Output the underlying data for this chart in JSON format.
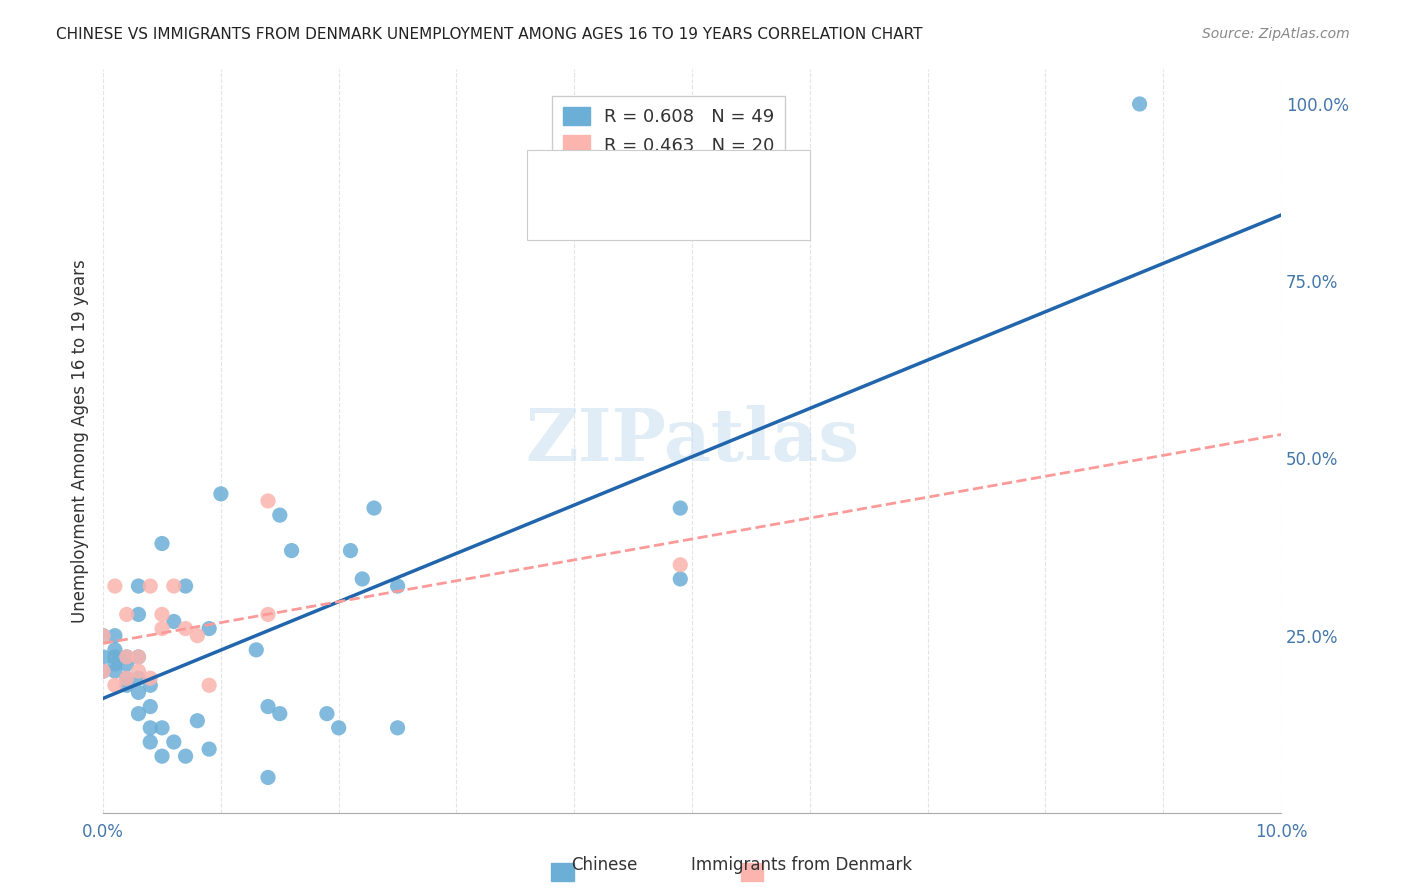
{
  "title": "CHINESE VS IMMIGRANTS FROM DENMARK UNEMPLOYMENT AMONG AGES 16 TO 19 YEARS CORRELATION CHART",
  "source": "Source: ZipAtlas.com",
  "xlabel": "",
  "ylabel": "Unemployment Among Ages 16 to 19 years",
  "xlim": [
    0.0,
    0.1
  ],
  "ylim": [
    0.0,
    1.05
  ],
  "xticks": [
    0.0,
    0.01,
    0.02,
    0.03,
    0.04,
    0.05,
    0.06,
    0.07,
    0.08,
    0.09,
    0.1
  ],
  "xticklabels": [
    "0.0%",
    "",
    "",
    "",
    "",
    "",
    "",
    "",
    "",
    "",
    "10.0%"
  ],
  "ytick_positions": [
    0.0,
    0.25,
    0.5,
    0.75,
    1.0
  ],
  "ytick_labels": [
    "",
    "25.0%",
    "50.0%",
    "75.0%",
    "100.0%"
  ],
  "r_chinese": 0.608,
  "n_chinese": 49,
  "r_denmark": 0.463,
  "n_denmark": 20,
  "chinese_color": "#6baed6",
  "denmark_color": "#fbb4ae",
  "trendline_chinese_color": "#2166ac",
  "trendline_denmark_color": "#fb9a99",
  "watermark": "ZIPatlas",
  "chinese_x": [
    0.0,
    0.0,
    0.0,
    0.001,
    0.001,
    0.001,
    0.001,
    0.001,
    0.002,
    0.002,
    0.002,
    0.002,
    0.003,
    0.003,
    0.003,
    0.003,
    0.003,
    0.003,
    0.004,
    0.004,
    0.004,
    0.004,
    0.005,
    0.005,
    0.005,
    0.006,
    0.006,
    0.007,
    0.007,
    0.008,
    0.009,
    0.009,
    0.01,
    0.013,
    0.014,
    0.014,
    0.015,
    0.015,
    0.016,
    0.019,
    0.02,
    0.021,
    0.022,
    0.023,
    0.025,
    0.025,
    0.049,
    0.049,
    0.088
  ],
  "chinese_y": [
    0.2,
    0.22,
    0.25,
    0.2,
    0.21,
    0.22,
    0.23,
    0.25,
    0.18,
    0.19,
    0.21,
    0.22,
    0.14,
    0.17,
    0.19,
    0.22,
    0.28,
    0.32,
    0.1,
    0.12,
    0.15,
    0.18,
    0.08,
    0.12,
    0.38,
    0.1,
    0.27,
    0.08,
    0.32,
    0.13,
    0.09,
    0.26,
    0.45,
    0.23,
    0.05,
    0.15,
    0.14,
    0.42,
    0.37,
    0.14,
    0.12,
    0.37,
    0.33,
    0.43,
    0.32,
    0.12,
    0.33,
    0.43,
    1.0
  ],
  "denmark_x": [
    0.0,
    0.0,
    0.001,
    0.001,
    0.002,
    0.002,
    0.002,
    0.003,
    0.003,
    0.004,
    0.004,
    0.005,
    0.005,
    0.006,
    0.007,
    0.008,
    0.009,
    0.014,
    0.014,
    0.049
  ],
  "denmark_y": [
    0.2,
    0.25,
    0.18,
    0.32,
    0.19,
    0.22,
    0.28,
    0.2,
    0.22,
    0.19,
    0.32,
    0.26,
    0.28,
    0.32,
    0.26,
    0.25,
    0.18,
    0.28,
    0.44,
    0.35
  ],
  "background_color": "#ffffff",
  "grid_color": "#dddddd"
}
